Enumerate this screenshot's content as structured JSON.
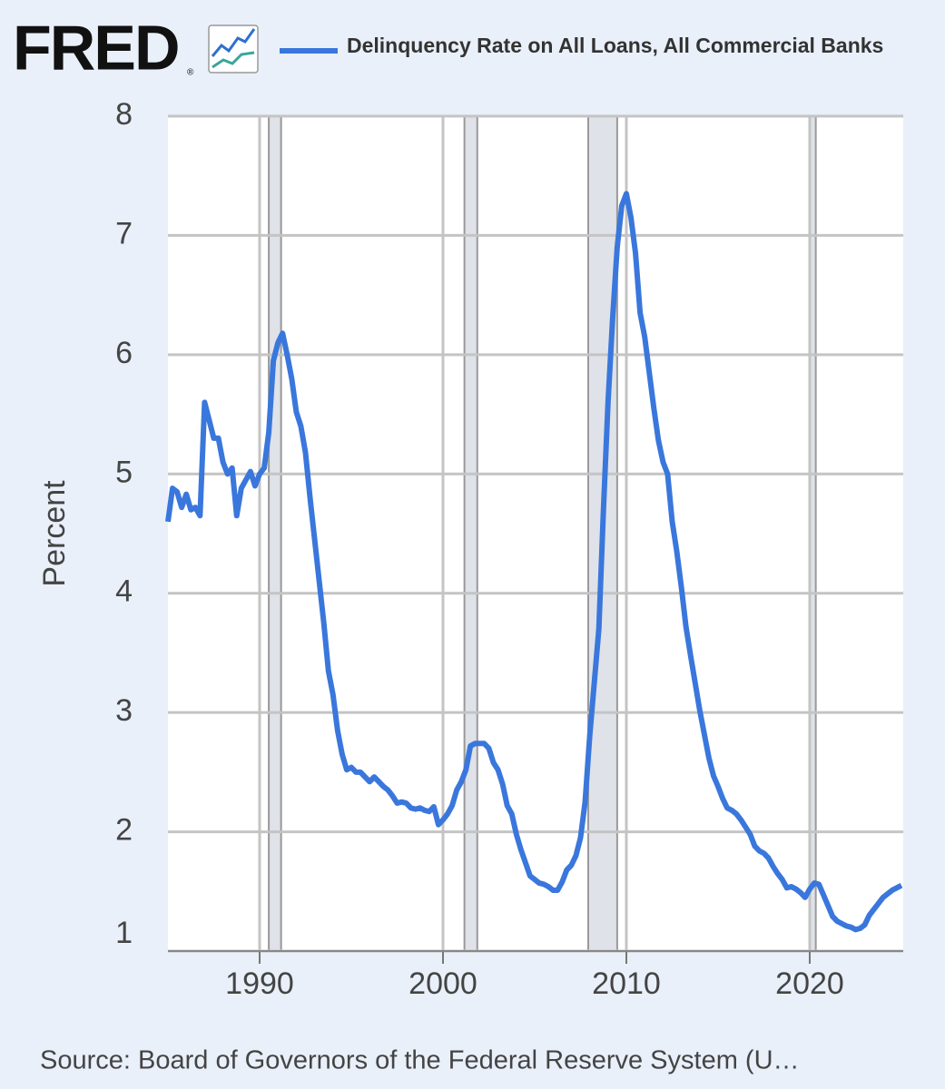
{
  "logo": "FRED",
  "logo_mark": "®",
  "chart_data": {
    "type": "line",
    "ylabel": "Percent",
    "source": "Source: Board of Governors of the Federal Reserve System (U…",
    "xlim": [
      1985,
      2025.1
    ],
    "ylim": [
      1,
      8
    ],
    "xticks": [
      1990,
      2000,
      2010,
      2020
    ],
    "yticks": [
      1,
      2,
      3,
      4,
      5,
      6,
      7,
      8
    ],
    "grid": true,
    "recessions": {
      "color": "#dfe2e8",
      "spans": [
        [
          1990.5,
          1991.17
        ],
        [
          2001.17,
          2001.87
        ],
        [
          2007.92,
          2009.5
        ],
        [
          2020.0,
          2020.33
        ]
      ]
    },
    "x": [
      1985.0,
      1985.25,
      1985.5,
      1985.75,
      1986.0,
      1986.25,
      1986.5,
      1986.75,
      1987.0,
      1987.25,
      1987.5,
      1987.75,
      1988.0,
      1988.25,
      1988.5,
      1988.75,
      1989.0,
      1989.25,
      1989.5,
      1989.75,
      1990.0,
      1990.25,
      1990.5,
      1990.75,
      1991.0,
      1991.25,
      1991.5,
      1991.75,
      1992.0,
      1992.25,
      1992.5,
      1992.75,
      1993.0,
      1993.25,
      1993.5,
      1993.75,
      1994.0,
      1994.25,
      1994.5,
      1994.75,
      1995.0,
      1995.25,
      1995.5,
      1995.75,
      1996.0,
      1996.25,
      1996.5,
      1996.75,
      1997.0,
      1997.25,
      1997.5,
      1997.75,
      1998.0,
      1998.25,
      1998.5,
      1998.75,
      1999.0,
      1999.25,
      1999.5,
      1999.75,
      2000.0,
      2000.25,
      2000.5,
      2000.75,
      2001.0,
      2001.25,
      2001.5,
      2001.75,
      2002.0,
      2002.25,
      2002.5,
      2002.75,
      2003.0,
      2003.25,
      2003.5,
      2003.75,
      2004.0,
      2004.25,
      2004.5,
      2004.75,
      2005.0,
      2005.25,
      2005.5,
      2005.75,
      2006.0,
      2006.25,
      2006.5,
      2006.75,
      2007.0,
      2007.25,
      2007.5,
      2007.75,
      2008.0,
      2008.25,
      2008.5,
      2008.75,
      2009.0,
      2009.25,
      2009.5,
      2009.75,
      2010.0,
      2010.25,
      2010.5,
      2010.75,
      2011.0,
      2011.25,
      2011.5,
      2011.75,
      2012.0,
      2012.25,
      2012.5,
      2012.75,
      2013.0,
      2013.25,
      2013.5,
      2013.75,
      2014.0,
      2014.25,
      2014.5,
      2014.75,
      2015.0,
      2015.25,
      2015.5,
      2015.75,
      2016.0,
      2016.25,
      2016.5,
      2016.75,
      2017.0,
      2017.25,
      2017.5,
      2017.75,
      2018.0,
      2018.25,
      2018.5,
      2018.75,
      2019.0,
      2019.25,
      2019.5,
      2019.75,
      2020.0,
      2020.25,
      2020.5,
      2020.75,
      2021.0,
      2021.25,
      2021.5,
      2021.75,
      2022.0,
      2022.25,
      2022.5,
      2022.75,
      2023.0,
      2023.25,
      2023.5,
      2023.75,
      2024.0,
      2024.25,
      2024.5,
      2024.75,
      2025.0
    ],
    "series": [
      {
        "name": "Delinquency Rate on All Loans, All Commercial Banks",
        "color": "#3a77dc",
        "values": [
          4.6,
          4.88,
          4.85,
          4.72,
          4.83,
          4.7,
          4.72,
          4.65,
          5.6,
          5.45,
          5.3,
          5.3,
          5.1,
          5.0,
          5.05,
          4.65,
          4.88,
          4.95,
          5.02,
          4.9,
          5.0,
          5.05,
          5.35,
          5.95,
          6.1,
          6.18,
          6.0,
          5.8,
          5.52,
          5.4,
          5.18,
          4.8,
          4.45,
          4.1,
          3.75,
          3.35,
          3.15,
          2.85,
          2.65,
          2.52,
          2.54,
          2.5,
          2.5,
          2.46,
          2.42,
          2.46,
          2.42,
          2.38,
          2.35,
          2.3,
          2.24,
          2.25,
          2.24,
          2.2,
          2.19,
          2.2,
          2.18,
          2.17,
          2.21,
          2.06,
          2.1,
          2.15,
          2.22,
          2.35,
          2.42,
          2.52,
          2.72,
          2.74,
          2.74,
          2.74,
          2.7,
          2.58,
          2.52,
          2.4,
          2.22,
          2.15,
          1.98,
          1.85,
          1.74,
          1.63,
          1.6,
          1.57,
          1.56,
          1.54,
          1.51,
          1.51,
          1.58,
          1.68,
          1.72,
          1.8,
          1.95,
          2.25,
          2.8,
          3.25,
          3.7,
          4.7,
          5.6,
          6.3,
          6.9,
          7.25,
          7.35,
          7.15,
          6.85,
          6.35,
          6.15,
          5.85,
          5.55,
          5.28,
          5.1,
          5.0,
          4.6,
          4.35,
          4.05,
          3.72,
          3.48,
          3.25,
          3.02,
          2.82,
          2.62,
          2.47,
          2.38,
          2.28,
          2.2,
          2.18,
          2.15,
          2.1,
          2.04,
          1.98,
          1.88,
          1.84,
          1.82,
          1.78,
          1.71,
          1.65,
          1.6,
          1.53,
          1.54,
          1.52,
          1.49,
          1.45,
          1.52,
          1.57,
          1.56,
          1.47,
          1.38,
          1.29,
          1.25,
          1.23,
          1.21,
          1.2,
          1.18,
          1.19,
          1.22,
          1.3,
          1.35,
          1.4,
          1.45,
          1.48,
          1.51,
          1.53,
          1.55
        ]
      }
    ]
  }
}
